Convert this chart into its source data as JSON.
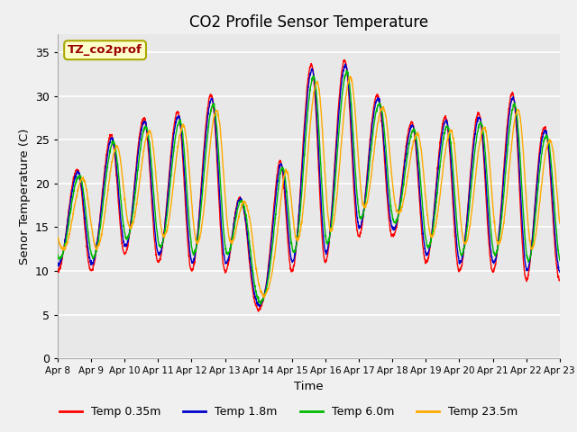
{
  "title": "CO2 Profile Sensor Temperature",
  "xlabel": "Time",
  "ylabel": "Senor Temperature (C)",
  "ylim": [
    0,
    37
  ],
  "yticks": [
    0,
    5,
    10,
    15,
    20,
    25,
    30,
    35
  ],
  "legend_label": "TZ_co2prof",
  "legend_box_color": "#ffffcc",
  "legend_box_edge": "#aaa800",
  "legend_text_color": "#990000",
  "series_labels": [
    "Temp 0.35m",
    "Temp 1.8m",
    "Temp 6.0m",
    "Temp 23.5m"
  ],
  "series_colors": [
    "#ff0000",
    "#0000cc",
    "#00bb00",
    "#ffaa00"
  ],
  "plot_bg_color": "#e8e8e8",
  "fig_bg_color": "#f0f0f0",
  "grid_color": "#ffffff",
  "x_tick_labels": [
    "Apr 8",
    "Apr 9",
    "Apr 10",
    "Apr 11",
    "Apr 12",
    "Apr 13",
    "Apr 14",
    "Apr 15",
    "Apr 16",
    "Apr 17",
    "Apr 18",
    "Apr 19",
    "Apr 20",
    "Apr 21",
    "Apr 22",
    "Apr 23"
  ]
}
